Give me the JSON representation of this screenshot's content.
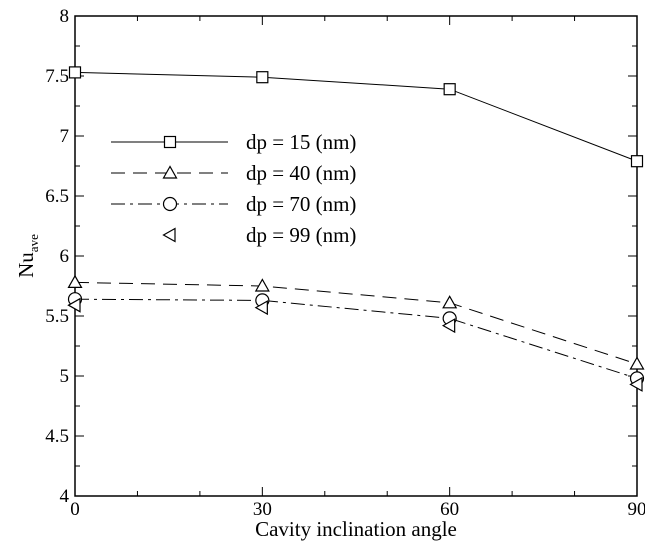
{
  "chart_data": {
    "type": "line",
    "xlabel": "Cavity inclination angle",
    "ylabel_main": "Nu",
    "ylabel_sub": "ave",
    "x": [
      0,
      30,
      60,
      90
    ],
    "xlim": [
      0,
      90
    ],
    "ylim": [
      4,
      8
    ],
    "xticks": [
      "0",
      "30",
      "60",
      "90"
    ],
    "yticks": [
      "4",
      "4.5",
      "5",
      "5.5",
      "6",
      "6.5",
      "7",
      "7.5",
      "8"
    ],
    "grid": false,
    "legend_position": "upper-left",
    "series": [
      {
        "name": "dp = 15 (nm)",
        "values": [
          7.53,
          7.49,
          7.39,
          6.79
        ],
        "marker": "square",
        "dash": "solid"
      },
      {
        "name": "dp = 40 (nm)",
        "values": [
          5.78,
          5.75,
          5.61,
          5.1
        ],
        "marker": "triangle-up",
        "dash": "dashed"
      },
      {
        "name": "dp = 70 (nm)",
        "values": [
          5.64,
          5.63,
          5.48,
          4.98
        ],
        "marker": "circle",
        "dash": "dashdot"
      },
      {
        "name": "dp = 99 (nm)",
        "values": [
          5.59,
          5.57,
          5.42,
          4.93
        ],
        "marker": "triangle-left",
        "dash": "none"
      }
    ]
  }
}
